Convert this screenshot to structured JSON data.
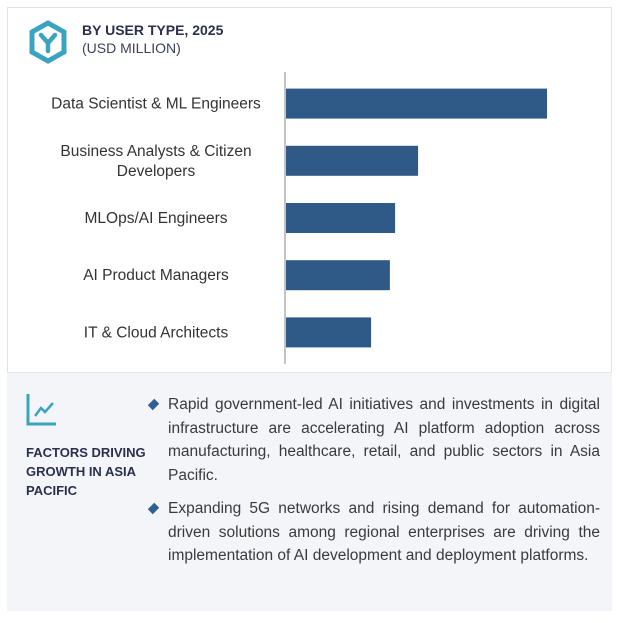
{
  "header": {
    "title": "BY USER TYPE, 2025",
    "subtitle": "(USD MILLION)",
    "icon": "hexagon-y-icon"
  },
  "chart_data": {
    "type": "bar",
    "orientation": "horizontal",
    "categories": [
      "Data Scientist & ML Engineers",
      "Business Analysts & Citizen Developers",
      "MLOps/AI Engineers",
      "AI Product Managers",
      "IT & Cloud Architects"
    ],
    "values": [
      100,
      50.6,
      41.8,
      39.8,
      32.6
    ],
    "title": "BY USER TYPE, 2025",
    "subtitle": "(USD MILLION)",
    "xlabel": "",
    "ylabel": "",
    "grid": false,
    "bar_color": "#2f5986"
  },
  "factors": {
    "icon": "line-chart-icon",
    "title": "FACTORS DRIVING GROWTH IN ASIA PACIFIC",
    "bullets": [
      "Rapid government-led AI initiatives and investments in digital infrastructure are accelerating AI platform adoption across manufacturing, healthcare, retail, and public sectors in Asia Pacific.",
      "Expanding 5G networks and rising demand for automation-driven solutions among regional enterprises are driving the implementation of AI development and deployment platforms."
    ],
    "accent": "#3aa3bf"
  }
}
